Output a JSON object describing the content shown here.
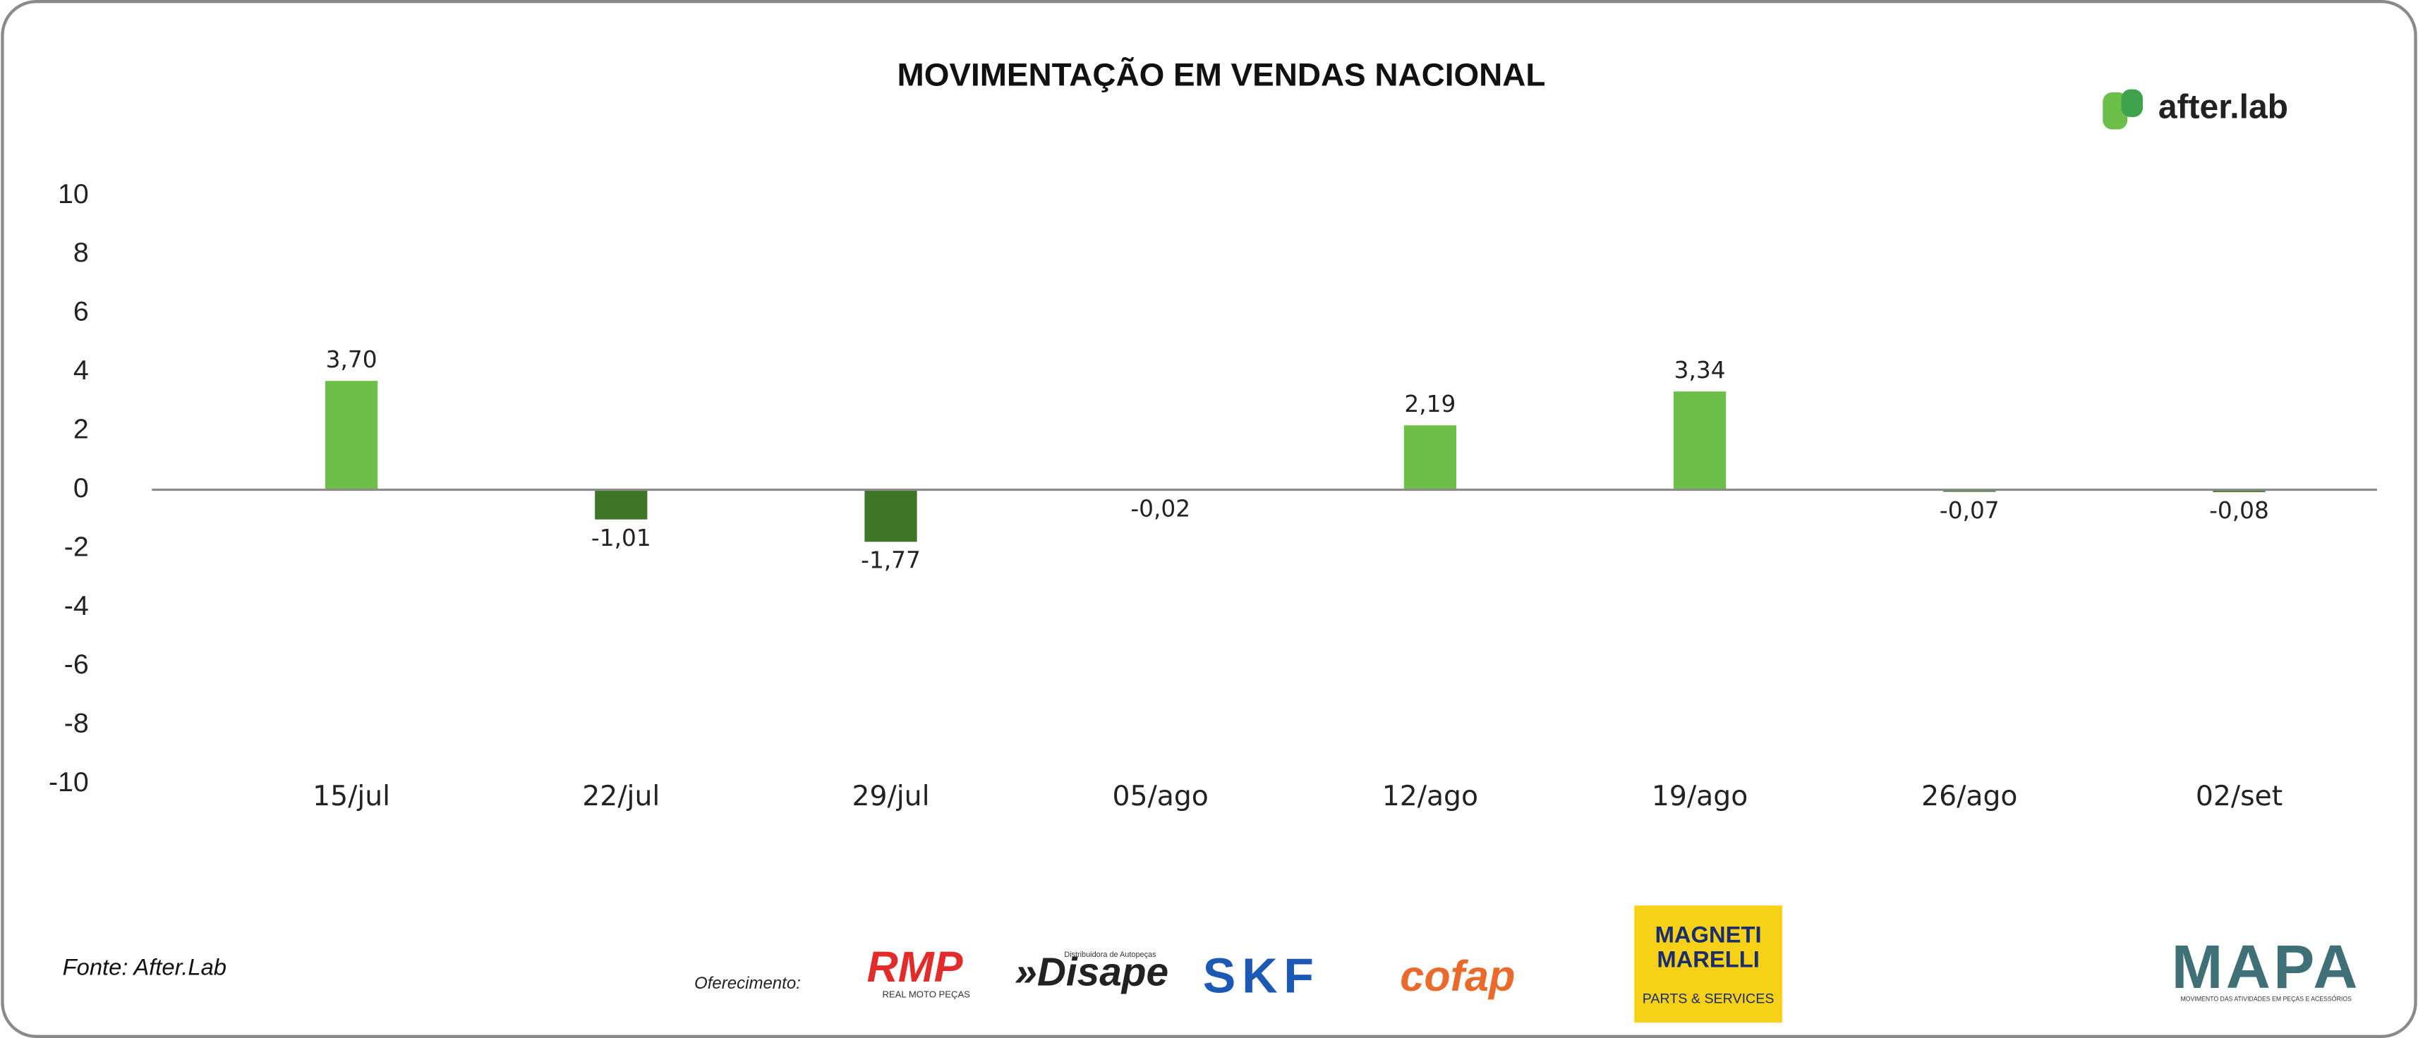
{
  "chart_data": {
    "type": "bar",
    "title": "MOVIMENTAÇÃO EM VENDAS NACIONAL",
    "categories": [
      "15/jul",
      "22/jul",
      "29/jul",
      "05/ago",
      "12/ago",
      "19/ago",
      "26/ago",
      "02/set"
    ],
    "values": [
      3.7,
      -1.01,
      -1.77,
      -0.02,
      2.19,
      3.34,
      -0.07,
      -0.08
    ],
    "value_labels": [
      "3,70",
      "-1,01",
      "-1,77",
      "-0,02",
      "2,19",
      "3,34",
      "-0,07",
      "-0,08"
    ],
    "positive_color": "#6cc04a",
    "negative_color": "#3e7526",
    "ylim": [
      -10,
      10
    ],
    "yticks": [
      -10,
      -8,
      -6,
      -4,
      -2,
      0,
      2,
      4,
      6,
      8,
      10
    ],
    "grid": false
  },
  "source": "Fonte: After.Lab",
  "sponsor_label": "Oferecimento:",
  "logos": {
    "after_lab": "after.lab",
    "rmp": "RMP",
    "rmp_sub": "REAL MOTO PEÇAS",
    "disape": "»Disape",
    "disape_sub": "Distribuidora de Autopeças",
    "skf": "SKF",
    "cofap": "cofap",
    "magneti": "MAGNETI",
    "marelli": "MARELLI",
    "marelli_sub": "PARTS & SERVICES",
    "mapa": "MAPA",
    "mapa_sub": "MOVIMENTO DAS ATIVIDADES EM PEÇAS E ACESSÓRIOS"
  }
}
